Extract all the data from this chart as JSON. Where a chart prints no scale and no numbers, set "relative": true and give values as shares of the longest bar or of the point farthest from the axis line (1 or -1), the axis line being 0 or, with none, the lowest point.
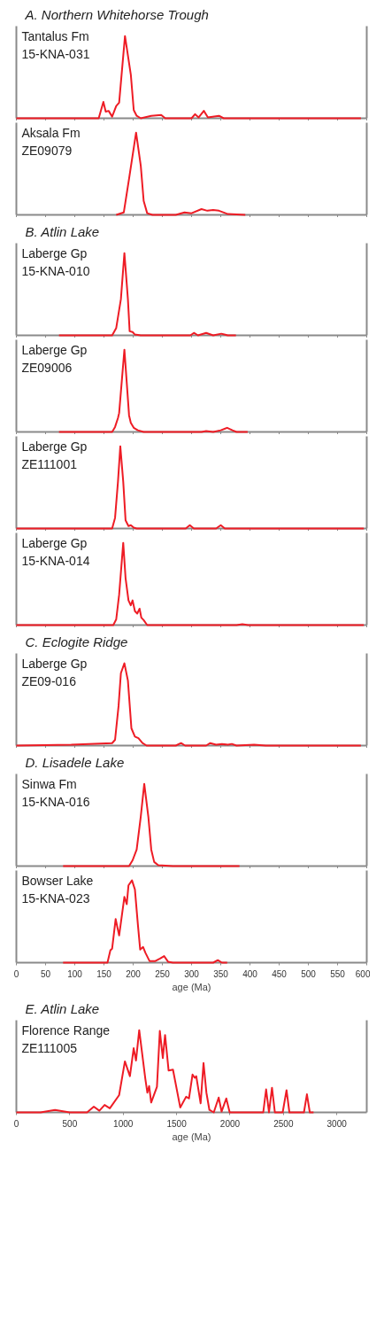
{
  "chart_data": [
    {
      "type": "line",
      "title": "A. Northern Whitehorse Trough",
      "annotations": [
        "Tantalus Fm",
        "15-KNA-031"
      ],
      "relative": true,
      "color": "#ee1c25",
      "xlim": [
        0,
        600
      ],
      "xticks": [
        0,
        50,
        100,
        150,
        200,
        250,
        300,
        350,
        400,
        450,
        500,
        550,
        600
      ],
      "tick_labels": false,
      "x": [
        0,
        141,
        149,
        153,
        158,
        164,
        171,
        176,
        186,
        196,
        201,
        206,
        213,
        231,
        248,
        255,
        300,
        306,
        312,
        321,
        328,
        347,
        355,
        590
      ],
      "values": [
        0,
        0,
        0.2,
        0.08,
        0.09,
        0.02,
        0.15,
        0.19,
        1,
        0.53,
        0.1,
        0.03,
        0,
        0.03,
        0.04,
        0,
        0,
        0.05,
        0.01,
        0.09,
        0.01,
        0.03,
        0,
        0
      ]
    },
    {
      "type": "line",
      "annotations": [
        "Aksala Fm",
        "ZE09079"
      ],
      "relative": true,
      "color": "#ee1c25",
      "xlim": [
        0,
        600
      ],
      "xticks": [
        0,
        50,
        100,
        150,
        200,
        250,
        300,
        350,
        400,
        450,
        500,
        550,
        600
      ],
      "tick_labels": false,
      "x": [
        171,
        184,
        193,
        205,
        213,
        218,
        224,
        233,
        273,
        288,
        300,
        317,
        327,
        337,
        347,
        362,
        392
      ],
      "values": [
        0,
        0.03,
        0.44,
        1,
        0.6,
        0.17,
        0.02,
        0,
        0,
        0.03,
        0.02,
        0.07,
        0.05,
        0.06,
        0.05,
        0.01,
        0
      ]
    },
    {
      "type": "line",
      "title": "B. Atlin Lake",
      "annotations": [
        "Laberge Gp",
        "15-KNA-010"
      ],
      "relative": true,
      "color": "#ee1c25",
      "xlim": [
        0,
        600
      ],
      "xticks": [
        0,
        50,
        100,
        150,
        200,
        250,
        300,
        350,
        400,
        450,
        500,
        550,
        600
      ],
      "tick_labels": false,
      "x": [
        73,
        164,
        171,
        179,
        185,
        191,
        194,
        199,
        203,
        213,
        298,
        304,
        311,
        325,
        337,
        351,
        362,
        376
      ],
      "values": [
        0,
        0,
        0.09,
        0.44,
        1,
        0.44,
        0.05,
        0.04,
        0.01,
        0,
        0,
        0.03,
        0,
        0.03,
        0,
        0.02,
        0,
        0
      ]
    },
    {
      "type": "line",
      "annotations": [
        "Laberge Gp",
        "ZE09006"
      ],
      "relative": true,
      "color": "#ee1c25",
      "xlim": [
        0,
        600
      ],
      "xticks": [
        0,
        50,
        100,
        150,
        200,
        250,
        300,
        350,
        400,
        450,
        500,
        550,
        600
      ],
      "tick_labels": false,
      "x": [
        73,
        164,
        169,
        174,
        176,
        185,
        193,
        196,
        201,
        208,
        218,
        317,
        325,
        337,
        350,
        361,
        370,
        377,
        396
      ],
      "values": [
        0,
        0,
        0.06,
        0.17,
        0.23,
        1,
        0.2,
        0.11,
        0.05,
        0.02,
        0,
        0,
        0.01,
        0,
        0.02,
        0.05,
        0.02,
        0,
        0
      ]
    },
    {
      "type": "line",
      "annotations": [
        "Laberge Gp",
        "ZE111001"
      ],
      "relative": true,
      "color": "#ee1c25",
      "xlim": [
        0,
        600
      ],
      "xticks": [
        0,
        50,
        100,
        150,
        200,
        250,
        300,
        350,
        400,
        450,
        500,
        550,
        600
      ],
      "tick_labels": false,
      "x": [
        0,
        164,
        169,
        174,
        178,
        183,
        187,
        192,
        196,
        201,
        206,
        290,
        297,
        304,
        342,
        350,
        357,
        595
      ],
      "values": [
        0,
        0,
        0.13,
        0.57,
        1,
        0.57,
        0.1,
        0.03,
        0.04,
        0.01,
        0,
        0,
        0.04,
        0,
        0,
        0.04,
        0,
        0
      ]
    },
    {
      "type": "line",
      "annotations": [
        "Laberge Gp",
        "15-KNA-014"
      ],
      "relative": true,
      "color": "#ee1c25",
      "xlim": [
        0,
        600
      ],
      "xticks": [
        0,
        50,
        100,
        150,
        200,
        250,
        300,
        350,
        400,
        450,
        500,
        550,
        600
      ],
      "tick_labels": false,
      "x": [
        0,
        166,
        171,
        176,
        183,
        187,
        192,
        196,
        199,
        203,
        207,
        211,
        214,
        218,
        224,
        377,
        387,
        397,
        595
      ],
      "values": [
        0,
        0,
        0.07,
        0.37,
        1,
        0.57,
        0.3,
        0.24,
        0.3,
        0.17,
        0.14,
        0.2,
        0.09,
        0.06,
        0,
        0,
        0.01,
        0,
        0
      ]
    },
    {
      "type": "line",
      "title": "C. Eclogite Ridge",
      "annotations": [
        "Laberge Gp",
        "ZE09-016"
      ],
      "relative": true,
      "color": "#ee1c25",
      "xlim": [
        0,
        600
      ],
      "xticks": [
        0,
        50,
        100,
        150,
        200,
        250,
        300,
        350,
        400,
        450,
        500,
        550,
        600
      ],
      "tick_labels": false,
      "x": [
        0,
        94,
        164,
        169,
        175,
        179,
        185,
        191,
        197,
        203,
        209,
        216,
        223,
        273,
        282,
        289,
        325,
        332,
        342,
        352,
        362,
        369,
        377,
        407,
        427,
        590
      ],
      "values": [
        0,
        0.01,
        0.03,
        0.07,
        0.48,
        0.88,
        1,
        0.79,
        0.21,
        0.11,
        0.09,
        0.03,
        0,
        0,
        0.03,
        0,
        0,
        0.03,
        0.01,
        0.02,
        0.01,
        0.02,
        0,
        0.01,
        0,
        0
      ]
    },
    {
      "type": "line",
      "title": "D. Lisadele Lake",
      "annotations": [
        "Sinwa Fm",
        "15-KNA-016"
      ],
      "relative": true,
      "color": "#ee1c25",
      "xlim": [
        0,
        600
      ],
      "xticks": [
        0,
        50,
        100,
        150,
        200,
        250,
        300,
        350,
        400,
        450,
        500,
        550,
        600
      ],
      "tick_labels": false,
      "x": [
        80,
        193,
        199,
        206,
        213,
        219,
        226,
        231,
        236,
        243,
        268,
        382
      ],
      "values": [
        0,
        0,
        0.07,
        0.2,
        0.6,
        1,
        0.6,
        0.2,
        0.05,
        0.01,
        0,
        0
      ]
    },
    {
      "type": "line",
      "annotations": [
        "Bowser Lake",
        "15-KNA-023"
      ],
      "relative": true,
      "color": "#ee1c25",
      "xlim": [
        0,
        600
      ],
      "xticks": [
        0,
        50,
        100,
        150,
        200,
        250,
        300,
        350,
        400,
        450,
        500,
        550,
        600
      ],
      "tick_labels": "x",
      "xlabel": "age (Ma)",
      "x": [
        80,
        156,
        161,
        164,
        170,
        176,
        185,
        189,
        192,
        198,
        203,
        208,
        212,
        217,
        221,
        228,
        238,
        246,
        253,
        260,
        268,
        337,
        345,
        352,
        361
      ],
      "values": [
        0,
        0,
        0.15,
        0.17,
        0.53,
        0.33,
        0.8,
        0.71,
        0.94,
        1,
        0.89,
        0.47,
        0.16,
        0.19,
        0.12,
        0.02,
        0.02,
        0.05,
        0.08,
        0.01,
        0,
        0,
        0.03,
        0,
        0
      ]
    },
    {
      "type": "line",
      "title": "E. Atlin Lake",
      "annotations": [
        "Florence Range",
        "ZE111005"
      ],
      "relative": true,
      "color": "#ee1c25",
      "xlim": [
        0,
        3280
      ],
      "xticks": [
        0,
        500,
        1000,
        1500,
        2000,
        2500,
        3000
      ],
      "tick_labels": "x",
      "xlabel": "age (Ma)",
      "x": [
        0,
        226,
        362,
        499,
        662,
        725,
        777,
        826,
        875,
        962,
        1016,
        1063,
        1098,
        1120,
        1150,
        1207,
        1226,
        1243,
        1262,
        1316,
        1343,
        1371,
        1392,
        1425,
        1466,
        1534,
        1589,
        1616,
        1649,
        1670,
        1684,
        1725,
        1752,
        1779,
        1807,
        1848,
        1894,
        1921,
        1965,
        1997,
        2311,
        2338,
        2365,
        2393,
        2420,
        2493,
        2529,
        2556,
        2692,
        2720,
        2747,
        2782
      ],
      "values": [
        0,
        0,
        0.03,
        0,
        0,
        0.07,
        0.02,
        0.09,
        0.05,
        0.21,
        0.62,
        0.44,
        0.78,
        0.63,
        1,
        0.41,
        0.24,
        0.32,
        0.12,
        0.31,
        0.99,
        0.66,
        0.94,
        0.51,
        0.52,
        0.06,
        0.19,
        0.17,
        0.46,
        0.42,
        0.44,
        0.11,
        0.6,
        0.24,
        0.03,
        0,
        0.18,
        0.01,
        0.17,
        0,
        0,
        0.28,
        0,
        0.3,
        0,
        0,
        0.27,
        0,
        0,
        0.22,
        0,
        0
      ]
    }
  ]
}
